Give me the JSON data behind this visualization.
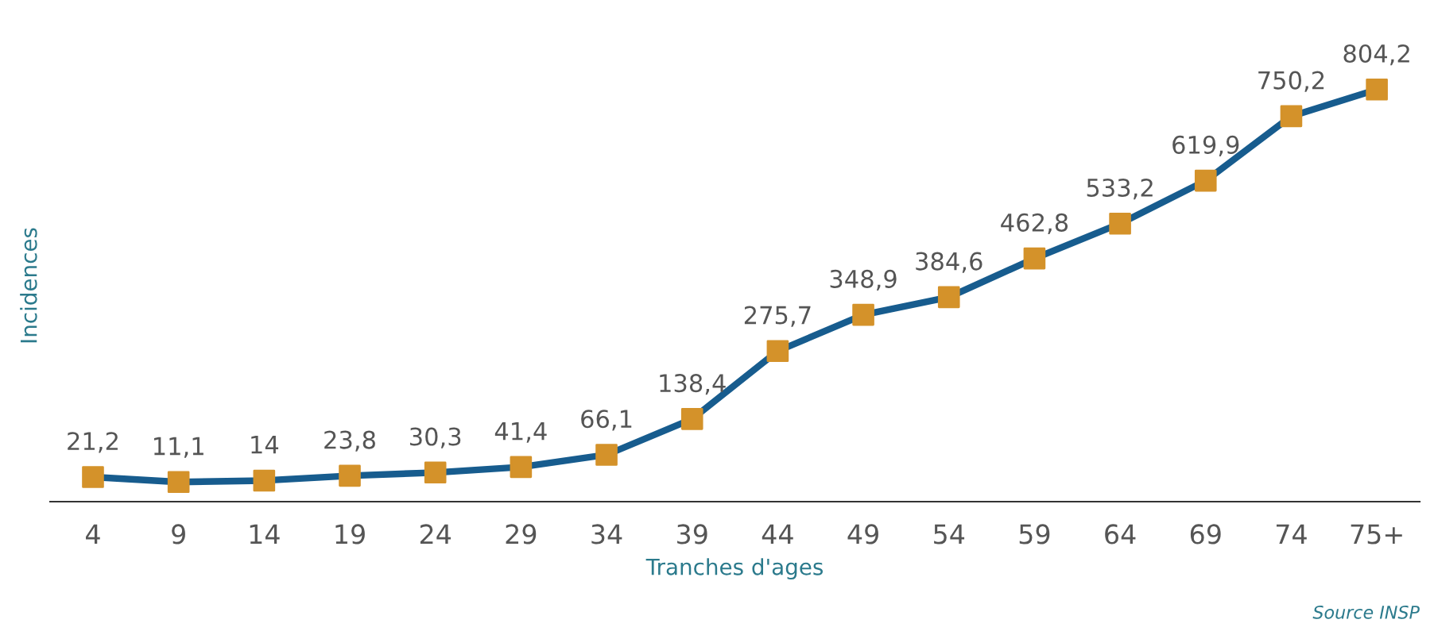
{
  "chart_data": {
    "type": "line",
    "xlabel": "Tranches d'ages",
    "ylabel": "Incidences",
    "annotations": [
      "Source INSP"
    ],
    "categories": [
      "4",
      "9",
      "14",
      "19",
      "24",
      "29",
      "34",
      "39",
      "44",
      "49",
      "54",
      "59",
      "64",
      "69",
      "74",
      "75+"
    ],
    "series": [
      {
        "color": "#175c8e",
        "colors": [
          "#d4922a",
          "#d4922a",
          "#d4922a",
          "#d4922a",
          "#d4922a",
          "#d4922a",
          "#d4922a",
          "#d4922a",
          "#d4922a",
          "#d4922a",
          "#d4922a",
          "#d4922a",
          "#d4922a",
          "#d4922a",
          "#d4922a",
          "#d4922a"
        ],
        "values": [
          21.2,
          11.1,
          14,
          23.8,
          30.3,
          41.4,
          66.1,
          138.4,
          275.7,
          348.9,
          384.6,
          462.8,
          533.2,
          619.9,
          750.2,
          804.2
        ],
        "value_labels": [
          "21,2",
          "11,1",
          "14",
          "23,8",
          "30,3",
          "41,4",
          "66,1",
          "138,4",
          "275,7",
          "348,9",
          "384,6",
          "462,8",
          "533,2",
          "619,9",
          "750,2",
          "804,2"
        ]
      }
    ],
    "tick_labels": "x",
    "grid": false,
    "legend": false,
    "marker": "square",
    "line_style": "solid"
  }
}
